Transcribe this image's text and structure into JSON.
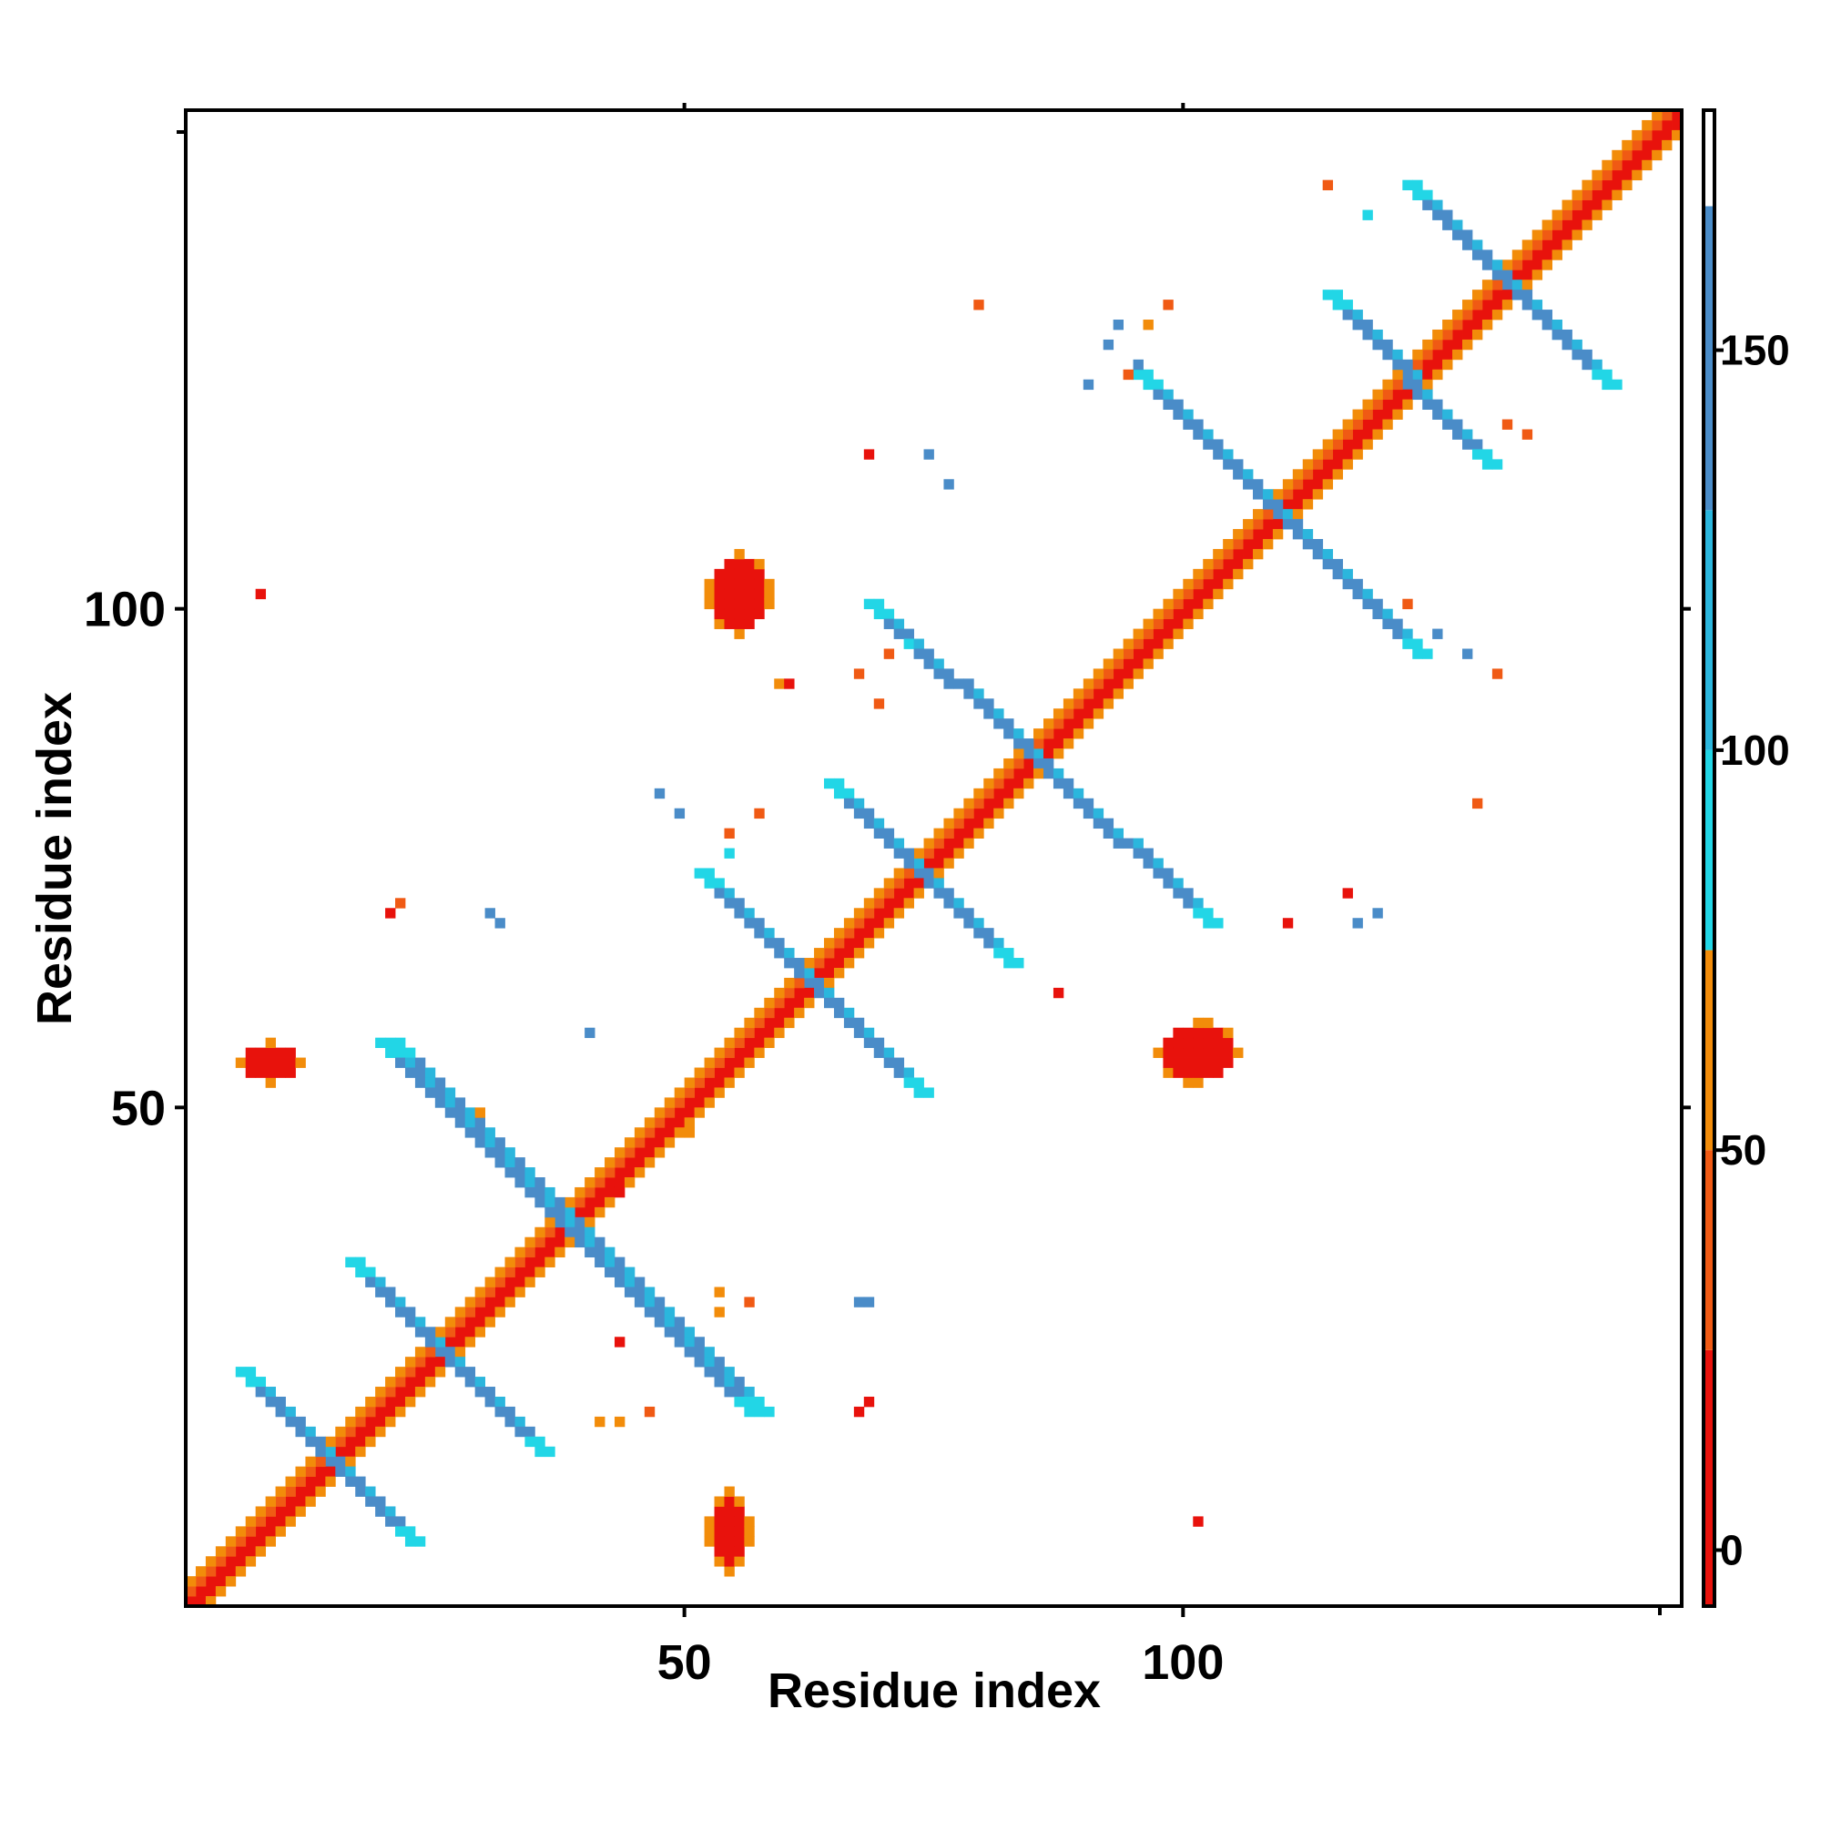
{
  "chart_data": {
    "type": "heatmap",
    "title": "",
    "xlabel": "Residue index",
    "ylabel": "Residue index",
    "xlim": [
      0,
      150
    ],
    "ylim": [
      0,
      150
    ],
    "x_ticks": [
      50,
      100
    ],
    "y_ticks": [
      50,
      100
    ],
    "colorbar": {
      "ticks": [
        0,
        50,
        100,
        150
      ],
      "range": [
        -7,
        180
      ],
      "bands": [
        {
          "from": -7,
          "to": 25,
          "color": "#e8120c"
        },
        {
          "from": 25,
          "to": 50,
          "color": "#f05a14"
        },
        {
          "from": 50,
          "to": 75,
          "color": "#f28c0a"
        },
        {
          "from": 75,
          "to": 100,
          "color": "#22d6e6"
        },
        {
          "from": 100,
          "to": 130,
          "color": "#2bb6dd"
        },
        {
          "from": 130,
          "to": 168,
          "color": "#4a8cc8"
        },
        {
          "from": 168,
          "to": 180,
          "color": "#ffffff"
        }
      ]
    },
    "grid": false,
    "segments": [
      {
        "from": [
          0,
          0
        ],
        "to": [
          150,
          150
        ],
        "width": 1,
        "value": 0,
        "category": "diagonal-core"
      },
      {
        "from": [
          1,
          0
        ],
        "to": [
          150,
          149
        ],
        "width": 1,
        "value": 10,
        "category": "diagonal"
      },
      {
        "from": [
          0,
          1
        ],
        "to": [
          149,
          150
        ],
        "width": 1,
        "value": 40,
        "category": "diagonal"
      },
      {
        "from": [
          2,
          0
        ],
        "to": [
          150,
          148
        ],
        "width": 1,
        "value": 60,
        "category": "diagonal"
      },
      {
        "from": [
          0,
          2
        ],
        "to": [
          148,
          150
        ],
        "width": 1,
        "value": 65,
        "category": "diagonal"
      },
      {
        "from": [
          5,
          23
        ],
        "to": [
          22,
          6
        ],
        "width": 2,
        "value": 150,
        "category": "anti"
      },
      {
        "from": [
          16,
          34
        ],
        "to": [
          35,
          15
        ],
        "width": 2,
        "value": 150,
        "category": "anti"
      },
      {
        "from": [
          19,
          56
        ],
        "to": [
          56,
          19
        ],
        "width": 3,
        "value": 152,
        "category": "anti"
      },
      {
        "from": [
          51,
          73
        ],
        "to": [
          73,
          51
        ],
        "width": 2,
        "value": 150,
        "category": "anti"
      },
      {
        "from": [
          64,
          82
        ],
        "to": [
          82,
          64
        ],
        "width": 2,
        "value": 150,
        "category": "anti"
      },
      {
        "from": [
          68,
          100
        ],
        "to": [
          102,
          68
        ],
        "width": 2,
        "value": 152,
        "category": "anti"
      },
      {
        "from": [
          95,
          123
        ],
        "to": [
          123,
          95
        ],
        "width": 2,
        "value": 150,
        "category": "anti"
      },
      {
        "from": [
          114,
          131
        ],
        "to": [
          130,
          114
        ],
        "width": 2,
        "value": 150,
        "category": "anti"
      },
      {
        "from": [
          122,
          142
        ],
        "to": [
          142,
          122
        ],
        "width": 2,
        "value": 152,
        "category": "anti"
      }
    ],
    "blobs": [
      {
        "center": [
          54,
          7
        ],
        "radius": [
          2,
          4
        ],
        "value": 10
      },
      {
        "center": [
          55,
          101
        ],
        "radius": [
          3,
          4
        ],
        "value": 10
      },
      {
        "center": [
          8,
          54
        ],
        "radius": [
          3,
          2
        ],
        "value": 10
      },
      {
        "center": [
          101,
          55
        ],
        "radius": [
          4,
          3
        ],
        "value": 10
      }
    ],
    "cells": [
      [
        7,
        101,
        15
      ],
      [
        20,
        69,
        15
      ],
      [
        21,
        70,
        40
      ],
      [
        29,
        49,
        60
      ],
      [
        40,
        57,
        150
      ],
      [
        30,
        69,
        150
      ],
      [
        31,
        68,
        150
      ],
      [
        47,
        81,
        150
      ],
      [
        49,
        79,
        150
      ],
      [
        56,
        30,
        40
      ],
      [
        67,
        30,
        150
      ],
      [
        68,
        30,
        150
      ],
      [
        67,
        19,
        15
      ],
      [
        68,
        20,
        15
      ],
      [
        41,
        18,
        50
      ],
      [
        43,
        18,
        60
      ],
      [
        46,
        19,
        40
      ],
      [
        53,
        29,
        60
      ],
      [
        53,
        31,
        65
      ],
      [
        54,
        77,
        40
      ],
      [
        54,
        75,
        75
      ],
      [
        57,
        79,
        40
      ],
      [
        59,
        92,
        60
      ],
      [
        60,
        92,
        15
      ],
      [
        69,
        90,
        40
      ],
      [
        67,
        93,
        40
      ],
      [
        70,
        95,
        40
      ],
      [
        72,
        96,
        75
      ],
      [
        74,
        115,
        150
      ],
      [
        76,
        112,
        150
      ],
      [
        68,
        115,
        15
      ],
      [
        79,
        130,
        40
      ],
      [
        87,
        61,
        15
      ],
      [
        94,
        123,
        40
      ],
      [
        92,
        126,
        150
      ],
      [
        93,
        128,
        150
      ],
      [
        95,
        124,
        150
      ],
      [
        90,
        122,
        150
      ],
      [
        101,
        8,
        15
      ],
      [
        117,
        68,
        150
      ],
      [
        119,
        69,
        150
      ],
      [
        110,
        68,
        15
      ],
      [
        116,
        71,
        15
      ],
      [
        122,
        100,
        40
      ],
      [
        125,
        97,
        150
      ],
      [
        128,
        95,
        150
      ],
      [
        131,
        93,
        40
      ],
      [
        129,
        80,
        40
      ],
      [
        132,
        118,
        40
      ],
      [
        134,
        117,
        40
      ],
      [
        114,
        142,
        40
      ],
      [
        118,
        139,
        75
      ],
      [
        43,
        41,
        15
      ],
      [
        50,
        47,
        60
      ],
      [
        43,
        26,
        15
      ],
      [
        96,
        128,
        60
      ],
      [
        98,
        130,
        40
      ]
    ]
  }
}
